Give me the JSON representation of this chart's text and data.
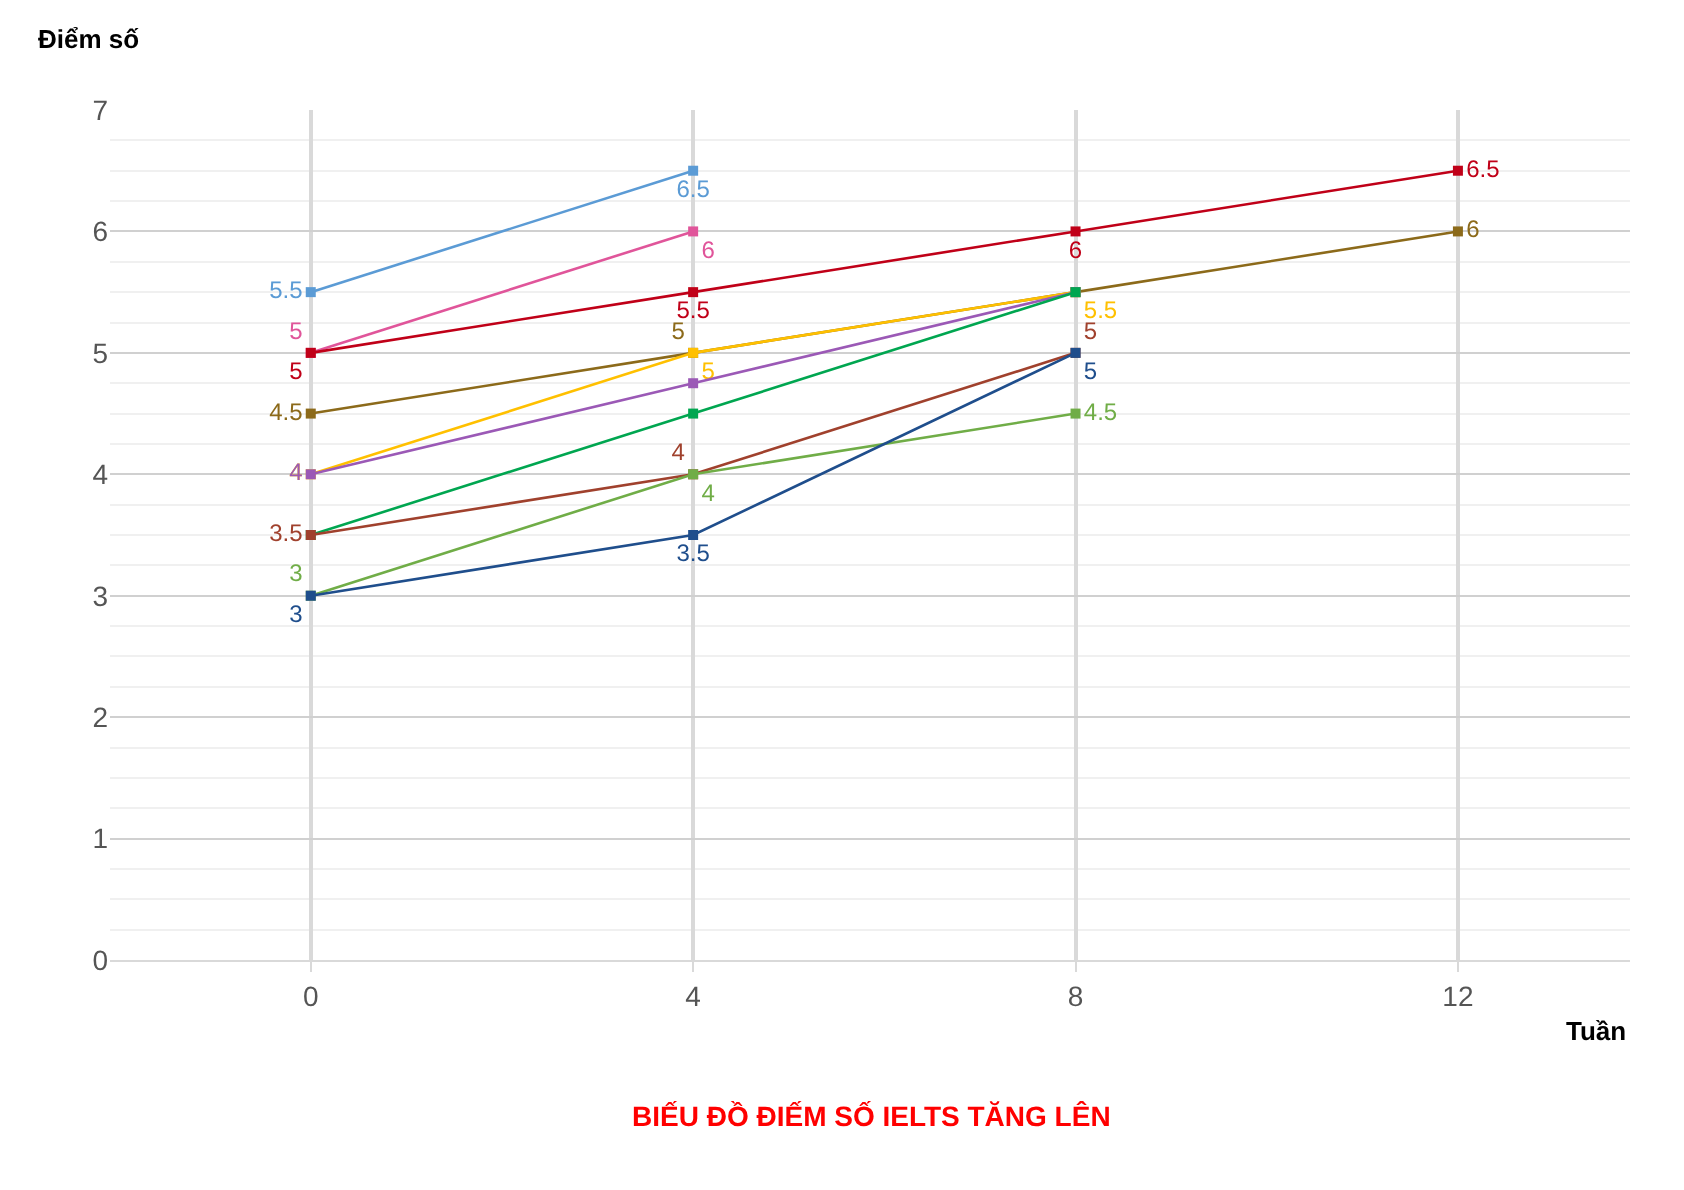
{
  "chart_data": {
    "type": "line",
    "title": "BIẾU ĐỒ ĐIẾM SỐ IELTS TĂNG LÊN",
    "xlabel": "Tuần",
    "ylabel": "Điểm số",
    "xlim": [
      -2.1,
      13.8
    ],
    "xticks": [
      0,
      4,
      8,
      12
    ],
    "ylim": [
      0,
      7
    ],
    "yticks": [
      0,
      1,
      2,
      3,
      4,
      5,
      6,
      7
    ],
    "grid": true,
    "marker": "square",
    "line_style": "solid",
    "series": [
      {
        "color": "#5b9bd5",
        "x": [
          0,
          4
        ],
        "values": [
          5.5,
          6.5
        ],
        "value_labels": [
          "5.5",
          "6.5"
        ]
      },
      {
        "color": "#e0559a",
        "x": [
          0,
          4
        ],
        "values": [
          5,
          6
        ],
        "value_labels": [
          "5",
          "6"
        ]
      },
      {
        "color": "#c00018",
        "x": [
          0,
          4,
          8,
          12
        ],
        "values": [
          5,
          5.5,
          6,
          6.5
        ],
        "value_labels": [
          "5",
          "5.5",
          "6",
          "6.5"
        ]
      },
      {
        "color": "#8c6a1a",
        "x": [
          0,
          4,
          8,
          12
        ],
        "values": [
          4.5,
          5,
          5.5,
          6
        ],
        "value_labels": [
          "4.5",
          "5",
          null,
          "6"
        ]
      },
      {
        "color": "#ffc000",
        "x": [
          0,
          4,
          8
        ],
        "values": [
          4,
          5,
          5.5
        ],
        "value_labels": [
          "4",
          "5",
          "5.5"
        ]
      },
      {
        "color": "#9b59b6",
        "x": [
          0,
          4,
          8
        ],
        "values": [
          4,
          4.75,
          5.5
        ],
        "value_labels": [
          "4",
          null,
          null
        ]
      },
      {
        "color": "#00a650",
        "x": [
          0,
          4,
          8
        ],
        "values": [
          3.5,
          4.5,
          5.5
        ],
        "value_labels": [
          null,
          null,
          null
        ]
      },
      {
        "color": "#a0412d",
        "x": [
          0,
          4,
          8
        ],
        "values": [
          3.5,
          4,
          5
        ],
        "value_labels": [
          "3.5",
          "4",
          "5"
        ]
      },
      {
        "color": "#70ad47",
        "x": [
          0,
          4,
          8
        ],
        "values": [
          3,
          4,
          4.5
        ],
        "value_labels": [
          "3",
          "4",
          "4.5"
        ]
      },
      {
        "color": "#1f4e8c",
        "x": [
          0,
          4,
          8
        ],
        "values": [
          3,
          3.5,
          5
        ],
        "value_labels": [
          "3",
          "3.5",
          "5"
        ]
      }
    ]
  }
}
